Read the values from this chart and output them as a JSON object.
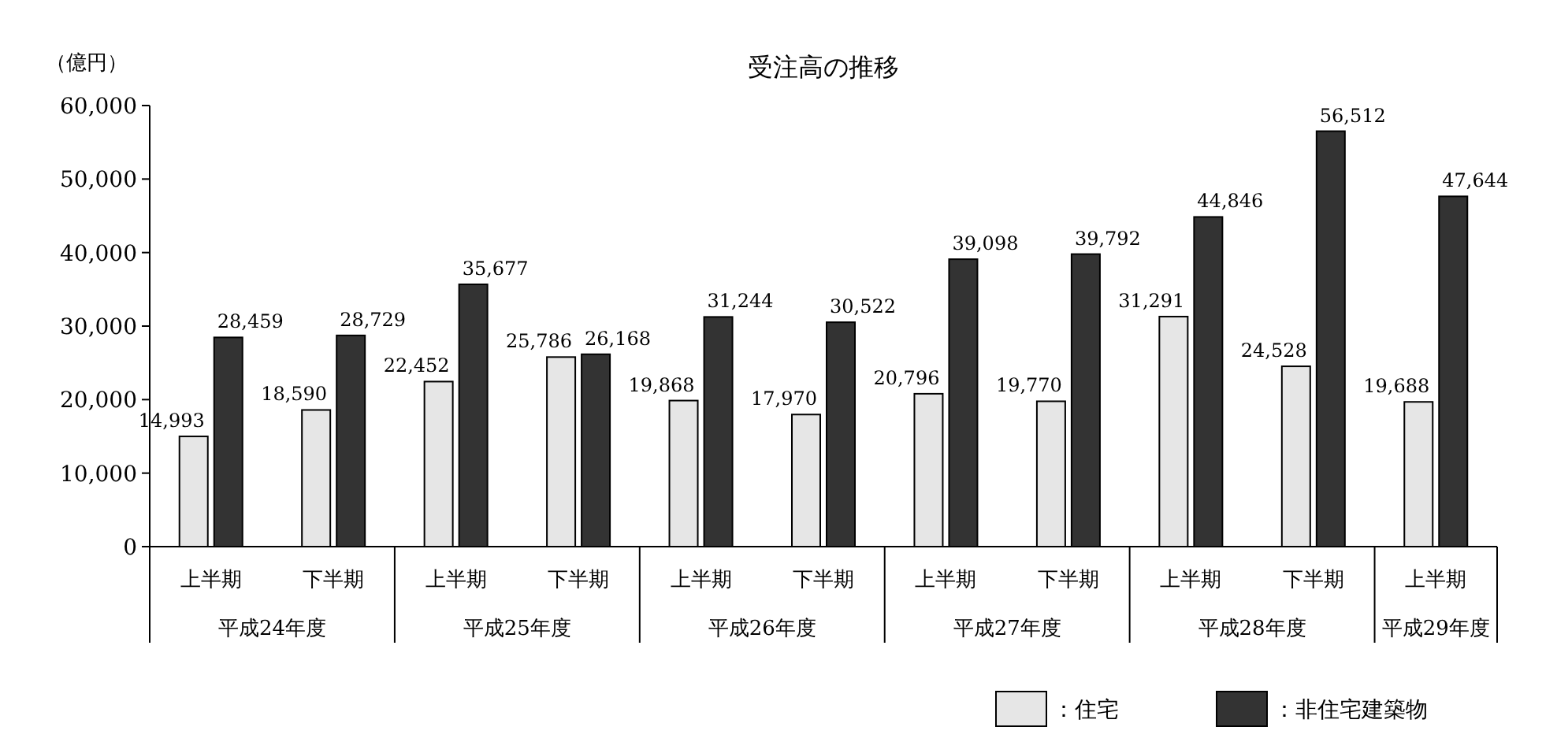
{
  "chart_data": {
    "type": "bar",
    "title": "受注高の推移",
    "ylabel": "（億円）",
    "categories": [
      "上半期",
      "下半期",
      "上半期",
      "下半期",
      "上半期",
      "下半期",
      "上半期",
      "下半期",
      "上半期",
      "下半期",
      "上半期"
    ],
    "annotations": [
      "平成24年度",
      "平成25年度",
      "平成26年度",
      "平成27年度",
      "平成28年度",
      "平成29年度"
    ],
    "series": [
      {
        "name": "：住宅",
        "color": "#e6e6e6",
        "values": [
          14993,
          18590,
          22452,
          25786,
          19868,
          17970,
          20796,
          19770,
          31291,
          24528,
          19688
        ],
        "value_labels": [
          "14,993",
          "18,590",
          "22,452",
          "25,786",
          "19,868",
          "17,970",
          "20,796",
          "19,770",
          "31,291",
          "24,528",
          "19,688"
        ]
      },
      {
        "name": "：非住宅建築物",
        "color": "#333333",
        "values": [
          28459,
          28729,
          35677,
          26168,
          31244,
          30522,
          39098,
          39792,
          44846,
          56512,
          47644
        ],
        "value_labels": [
          "28,459",
          "28,729",
          "35,677",
          "26,168",
          "31,244",
          "30,522",
          "39,098",
          "39,792",
          "44,846",
          "56,512",
          "47,644"
        ]
      }
    ],
    "ylim": [
      0,
      60000
    ],
    "yticks": [
      {
        "value": 0,
        "label": "0"
      },
      {
        "value": 10000,
        "label": "10,000"
      },
      {
        "value": 20000,
        "label": "20,000"
      },
      {
        "value": 30000,
        "label": "30,000"
      },
      {
        "value": 40000,
        "label": "40,000"
      },
      {
        "value": 50000,
        "label": "50,000"
      },
      {
        "value": 60000,
        "label": "60,000"
      }
    ],
    "legend": "bottom right"
  }
}
